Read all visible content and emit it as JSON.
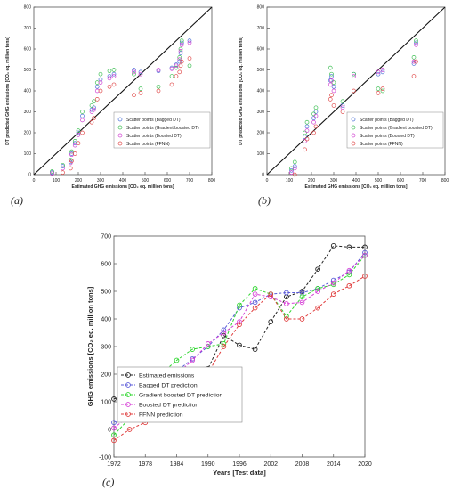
{
  "panels": [
    "(a)",
    "(b)",
    "(c)"
  ],
  "chart_data": [
    {
      "type": "scatter",
      "panel": "(a)",
      "xlabel": "Estimated GHG emissions [CO₂ eq. million tons]",
      "ylabel": "DT predicted GHG emissions [CO₂ eq. million tons]",
      "xlim": [
        0,
        800
      ],
      "ylim": [
        0,
        800
      ],
      "xticks": [
        0,
        100,
        200,
        300,
        400,
        500,
        600,
        700,
        800
      ],
      "yticks": [
        0,
        100,
        200,
        300,
        400,
        500,
        600,
        700,
        800
      ],
      "grid": false,
      "legend_position": "lower-right",
      "reference_line": "y = x",
      "series": [
        {
          "name": "Scatter points (Bagged DT)",
          "color": "#4a6fd6",
          "x": [
            82,
            130,
            165,
            170,
            185,
            200,
            218,
            260,
            270,
            285,
            300,
            340,
            360,
            450,
            480,
            560,
            620,
            640,
            655,
            660,
            665,
            700
          ],
          "y": [
            10,
            40,
            60,
            100,
            150,
            200,
            280,
            310,
            320,
            420,
            455,
            470,
            480,
            500,
            490,
            495,
            510,
            525,
            540,
            580,
            630,
            640
          ]
        },
        {
          "name": "Scatter points (Gradient boosted DT)",
          "color": "#3fbf55",
          "x": [
            82,
            130,
            165,
            170,
            185,
            200,
            218,
            260,
            270,
            285,
            300,
            340,
            360,
            450,
            480,
            560,
            620,
            640,
            655,
            660,
            665,
            700
          ],
          "y": [
            15,
            45,
            70,
            110,
            160,
            210,
            300,
            330,
            350,
            440,
            480,
            495,
            500,
            480,
            410,
            420,
            470,
            510,
            560,
            600,
            640,
            520
          ]
        },
        {
          "name": "Scatter points (Boosted DT)",
          "color": "#d13fd1",
          "x": [
            82,
            130,
            165,
            170,
            185,
            200,
            218,
            260,
            270,
            285,
            300,
            340,
            360,
            450,
            480,
            560,
            620,
            640,
            655,
            660,
            665,
            700
          ],
          "y": [
            5,
            30,
            55,
            95,
            140,
            190,
            260,
            300,
            310,
            400,
            440,
            460,
            470,
            490,
            480,
            500,
            505,
            520,
            550,
            590,
            620,
            630
          ]
        },
        {
          "name": "Scatter points (FFNN)",
          "color": "#e04a4a",
          "x": [
            82,
            130,
            165,
            170,
            185,
            200,
            218,
            260,
            270,
            285,
            300,
            340,
            360,
            450,
            480,
            560,
            620,
            640,
            655,
            660,
            665,
            700
          ],
          "y": [
            -10,
            10,
            30,
            65,
            100,
            150,
            200,
            250,
            270,
            360,
            400,
            420,
            430,
            380,
            390,
            400,
            430,
            470,
            490,
            520,
            540,
            555
          ]
        }
      ]
    },
    {
      "type": "scatter",
      "panel": "(b)",
      "xlabel": "Estimated GHG emissions [CO₂ eq. million tons]",
      "ylabel": "DT predicted GHG emissions [CO₂ eq. million tons]",
      "xlim": [
        0,
        800
      ],
      "ylim": [
        0,
        800
      ],
      "xticks": [
        0,
        100,
        200,
        300,
        400,
        500,
        600,
        700,
        800
      ],
      "yticks": [
        0,
        100,
        200,
        300,
        400,
        500,
        600,
        700,
        800
      ],
      "grid": false,
      "legend_position": "lower-right",
      "reference_line": "y = x",
      "series": [
        {
          "name": "Scatter points (Bagged DT)",
          "color": "#4a6fd6",
          "x": [
            110,
            125,
            170,
            180,
            210,
            220,
            285,
            290,
            300,
            340,
            390,
            500,
            520,
            660,
            670
          ],
          "y": [
            20,
            40,
            180,
            230,
            270,
            300,
            450,
            470,
            420,
            330,
            480,
            480,
            490,
            530,
            630
          ]
        },
        {
          "name": "Scatter points (Gradient boosted DT)",
          "color": "#3fbf55",
          "x": [
            110,
            125,
            170,
            180,
            210,
            220,
            285,
            290,
            300,
            340,
            390,
            500,
            520,
            660,
            670
          ],
          "y": [
            30,
            60,
            200,
            250,
            290,
            320,
            510,
            480,
            440,
            350,
            480,
            410,
            400,
            560,
            640
          ]
        },
        {
          "name": "Scatter points (Boosted DT)",
          "color": "#d13fd1",
          "x": [
            110,
            125,
            170,
            180,
            210,
            220,
            285,
            290,
            300,
            340,
            390,
            500,
            520,
            660,
            670
          ],
          "y": [
            10,
            30,
            160,
            210,
            250,
            280,
            430,
            450,
            400,
            320,
            470,
            490,
            500,
            540,
            620
          ]
        },
        {
          "name": "Scatter points (FFNN)",
          "color": "#e04a4a",
          "x": [
            110,
            125,
            170,
            180,
            210,
            220,
            285,
            290,
            300,
            340,
            390,
            500,
            520,
            660,
            670
          ],
          "y": [
            -20,
            0,
            120,
            170,
            200,
            230,
            360,
            380,
            330,
            300,
            400,
            390,
            410,
            470,
            540
          ]
        }
      ]
    },
    {
      "type": "line",
      "panel": "(c)",
      "xlabel": "Years [Test data]",
      "ylabel": "GHG emissions [CO₂ eq. million tons]",
      "xlim": [
        1972,
        2020
      ],
      "ylim": [
        -100,
        700
      ],
      "xticks": [
        1972,
        1978,
        1984,
        1990,
        1996,
        2002,
        2008,
        2014,
        2020
      ],
      "yticks": [
        -100,
        0,
        100,
        200,
        300,
        400,
        500,
        600,
        700
      ],
      "grid": false,
      "legend_position": "lower-left",
      "x": [
        1972,
        1975,
        1978,
        1981,
        1984,
        1987,
        1990,
        1993,
        1996,
        1999,
        2002,
        2005,
        2008,
        2011,
        2014,
        2017,
        2020
      ],
      "series": [
        {
          "name": "Estimated emissions",
          "color": "#222222",
          "values": [
            110,
            130,
            165,
            215,
            170,
            200,
            220,
            340,
            305,
            290,
            390,
            480,
            500,
            580,
            665,
            660,
            660
          ]
        },
        {
          "name": "Bagged DT prediction",
          "color": "#5a5ad8",
          "values": [
            25,
            60,
            100,
            150,
            210,
            255,
            300,
            360,
            440,
            460,
            490,
            495,
            495,
            510,
            540,
            570,
            640
          ]
        },
        {
          "name": "Gradient boosted DT prediction",
          "color": "#2fd62f",
          "values": [
            -20,
            40,
            95,
            200,
            250,
            290,
            300,
            310,
            450,
            510,
            490,
            410,
            480,
            510,
            525,
            560,
            630
          ]
        },
        {
          "name": "Boosted DT prediction",
          "color": "#d63fd6",
          "values": [
            5,
            50,
            95,
            125,
            200,
            250,
            310,
            350,
            390,
            490,
            480,
            455,
            460,
            500,
            530,
            575,
            630
          ]
        },
        {
          "name": "FFNN prediction",
          "color": "#e03c3c",
          "values": [
            -40,
            0,
            25,
            70,
            110,
            200,
            205,
            300,
            380,
            440,
            490,
            400,
            400,
            440,
            490,
            520,
            555
          ]
        }
      ]
    }
  ]
}
